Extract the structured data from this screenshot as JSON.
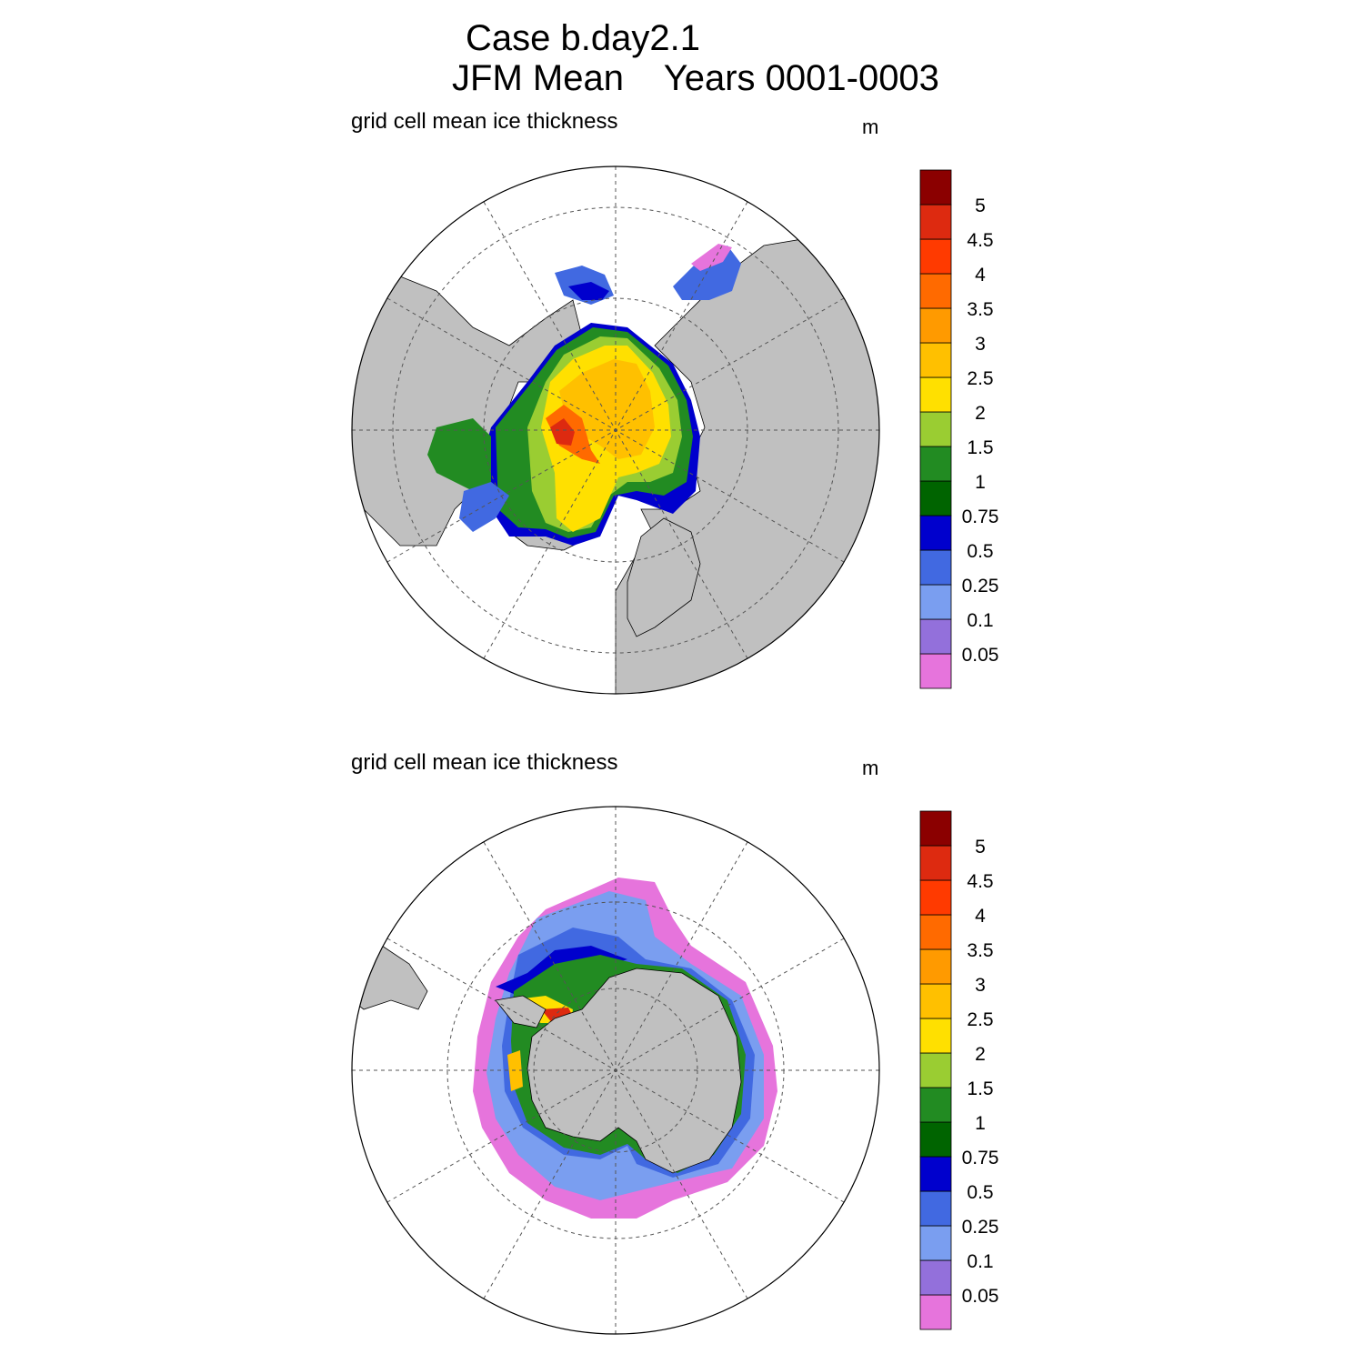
{
  "title": {
    "line1": "Case b.day2.1",
    "line2": "JFM Mean    Years 0001-0003"
  },
  "panels": [
    {
      "hemisphere": "north",
      "left_label": "grid cell mean ice thickness",
      "units": "m"
    },
    {
      "hemisphere": "south",
      "left_label": "grid cell mean ice thickness",
      "units": "m"
    }
  ],
  "colorbar": {
    "labels": [
      "0.05",
      "0.1",
      "0.25",
      "0.5",
      "0.75",
      "1",
      "1.5",
      "2",
      "2.5",
      "3",
      "3.5",
      "4",
      "4.5",
      "5"
    ],
    "colors": [
      "#e674dc",
      "#9370db",
      "#7a9ef0",
      "#4169e1",
      "#0000cd",
      "#006400",
      "#228b22",
      "#9acd32",
      "#ffe000",
      "#ffc000",
      "#ff9a00",
      "#ff6a00",
      "#ff3a00",
      "#dd2a10",
      "#8b0000"
    ]
  },
  "colors": {
    "land": "#c0c0c0",
    "ocean": "#ffffff",
    "grid": "#555555"
  }
}
